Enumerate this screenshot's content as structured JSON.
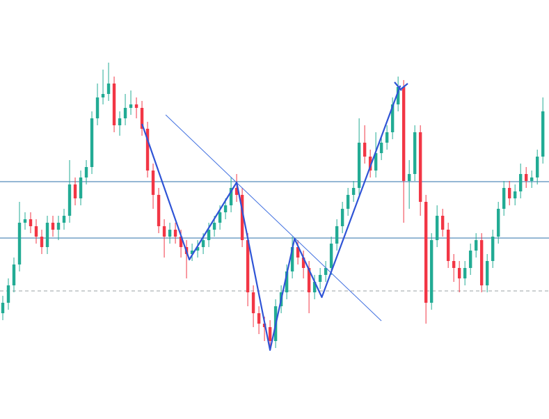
{
  "chart_data": {
    "type": "candlestick",
    "up_color": "#22ab94",
    "down_color": "#f23645",
    "xlim": [
      -0.5,
      98.1
    ],
    "ylim": [
      -2,
      600
    ],
    "open": [
      150,
      165,
      190,
      220,
      280,
      285,
      275,
      260,
      245,
      280,
      270,
      280,
      290,
      335,
      315,
      345,
      360,
      430,
      460,
      465,
      480,
      420,
      430,
      445,
      450,
      445,
      415,
      355,
      320,
      275,
      260,
      270,
      260,
      245,
      235,
      240,
      245,
      255,
      270,
      280,
      295,
      305,
      330,
      320,
      255,
      180,
      150,
      135,
      130,
      110,
      160,
      180,
      210,
      245,
      230,
      215,
      180,
      195,
      205,
      215,
      250,
      275,
      300,
      320,
      330,
      395,
      375,
      355,
      380,
      395,
      410,
      450,
      475,
      340,
      350,
      410,
      310,
      165,
      255,
      290,
      270,
      225,
      215,
      200,
      215,
      240,
      255,
      190,
      225,
      260,
      300,
      330,
      315,
      325,
      350,
      340,
      345,
      375
    ],
    "high": [
      175,
      200,
      230,
      310,
      295,
      295,
      285,
      270,
      290,
      290,
      290,
      300,
      370,
      345,
      355,
      370,
      440,
      480,
      500,
      510,
      490,
      440,
      465,
      470,
      460,
      455,
      425,
      365,
      330,
      285,
      280,
      280,
      270,
      255,
      250,
      255,
      265,
      280,
      290,
      305,
      315,
      345,
      350,
      330,
      265,
      190,
      160,
      145,
      140,
      170,
      190,
      220,
      260,
      255,
      240,
      225,
      205,
      215,
      225,
      260,
      285,
      310,
      330,
      340,
      430,
      420,
      385,
      410,
      405,
      420,
      460,
      490,
      485,
      370,
      420,
      420,
      320,
      265,
      305,
      300,
      280,
      235,
      225,
      225,
      250,
      265,
      265,
      235,
      270,
      310,
      340,
      340,
      335,
      365,
      360,
      355,
      385,
      460
    ],
    "low": [
      140,
      155,
      180,
      210,
      270,
      265,
      250,
      235,
      235,
      260,
      255,
      270,
      280,
      305,
      305,
      335,
      350,
      420,
      450,
      455,
      410,
      405,
      420,
      435,
      430,
      405,
      345,
      300,
      265,
      230,
      250,
      250,
      230,
      200,
      225,
      230,
      235,
      245,
      260,
      270,
      285,
      295,
      310,
      245,
      160,
      130,
      120,
      110,
      97,
      100,
      150,
      170,
      200,
      220,
      200,
      150,
      170,
      185,
      195,
      205,
      240,
      265,
      290,
      310,
      320,
      365,
      345,
      345,
      370,
      385,
      400,
      440,
      280,
      300,
      340,
      290,
      135,
      155,
      245,
      260,
      215,
      195,
      180,
      190,
      205,
      230,
      180,
      180,
      215,
      250,
      290,
      305,
      305,
      315,
      330,
      330,
      335,
      365
    ],
    "close": [
      165,
      190,
      220,
      280,
      285,
      275,
      260,
      245,
      280,
      270,
      280,
      290,
      335,
      315,
      345,
      360,
      430,
      460,
      465,
      480,
      420,
      430,
      445,
      450,
      445,
      415,
      355,
      320,
      275,
      260,
      270,
      260,
      245,
      235,
      240,
      245,
      255,
      270,
      280,
      295,
      305,
      330,
      320,
      255,
      180,
      150,
      135,
      130,
      110,
      160,
      180,
      210,
      245,
      230,
      215,
      180,
      195,
      205,
      215,
      250,
      275,
      300,
      320,
      330,
      395,
      375,
      355,
      380,
      395,
      410,
      450,
      475,
      340,
      350,
      410,
      310,
      165,
      255,
      290,
      270,
      225,
      215,
      200,
      215,
      240,
      255,
      190,
      225,
      260,
      300,
      330,
      315,
      325,
      350,
      340,
      345,
      375,
      440
    ],
    "levels": [
      {
        "value": 339,
        "color": "#2b6fa8",
        "style": "solid"
      },
      {
        "value": 258,
        "color": "#2b6fa8",
        "style": "solid"
      },
      {
        "value": 182,
        "color": "#9aa0a6",
        "style": "dashed"
      }
    ],
    "trendline": {
      "color": "#3f6fe0",
      "x": [
        29.25,
        68
      ],
      "values": [
        435,
        139
      ]
    },
    "zigzag": {
      "color": "#2f54d6",
      "x": [
        25,
        33.5,
        42,
        48,
        52.4,
        57.3,
        71.4
      ],
      "values": [
        422,
        227,
        338,
        97,
        257,
        173,
        477
      ]
    }
  }
}
